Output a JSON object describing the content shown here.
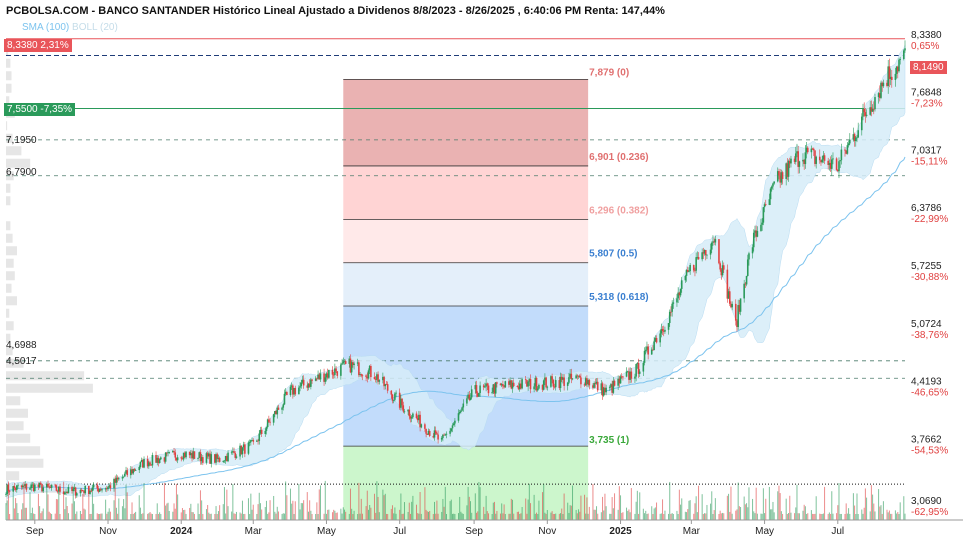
{
  "header": {
    "title": "PCBOLSA.COM - BANCO SANTANDER Histórico Lineal Ajustado a Dividenos 8/8/2023 - 8/26/2025 , 6:40:06 PM Renta: 147,44%",
    "indicator_sma": "SMA (100)",
    "indicator_boll": "BOLL (20)"
  },
  "levels": {
    "top_label": "8,3380",
    "top_change": "2,31%",
    "low_label": "7,5500",
    "low_change": "-7,35%",
    "l1": "7,1950",
    "l2": "6,7900",
    "l3": "4,6988",
    "l4": "4,5017",
    "last_price": "8,1490"
  },
  "colors": {
    "candle_up": "#2a9a5a",
    "candle_down": "#e04040",
    "sma": "#7cc3ee",
    "boll_fill": "#d6ecf8",
    "fib_red_dark": "#eab2b2",
    "fib_red_mid": "#ffd4d4",
    "fib_red_light": "#ffe9e9",
    "fib_blue_light": "#e4effa",
    "fib_blue": "#c2dcfb",
    "fib_green": "#ccf6cc"
  },
  "chart_data": {
    "type": "candlestick",
    "x_range": [
      "2023-08-08",
      "2025-08-26"
    ],
    "y_range": [
      2.9,
      8.55
    ],
    "y_ticks": [
      {
        "price": "8,3380",
        "pct": "0,65%"
      },
      {
        "price": "7,6848",
        "pct": "-7,23%"
      },
      {
        "price": "7,0317",
        "pct": "-15,11%"
      },
      {
        "price": "6,3786",
        "pct": "-22,99%"
      },
      {
        "price": "5,7255",
        "pct": "-30,88%"
      },
      {
        "price": "5,0724",
        "pct": "-38,76%"
      },
      {
        "price": "4,4193",
        "pct": "-46,65%"
      },
      {
        "price": "3,7662",
        "pct": "-54,53%"
      },
      {
        "price": "3,0690",
        "pct": "-62,95%"
      }
    ],
    "x_ticks": [
      {
        "label": "Sep",
        "bold": false
      },
      {
        "label": "Nov",
        "bold": false
      },
      {
        "label": "2024",
        "bold": true
      },
      {
        "label": "Mar",
        "bold": false
      },
      {
        "label": "May",
        "bold": false
      },
      {
        "label": "Jul",
        "bold": false
      },
      {
        "label": "Sep",
        "bold": false
      },
      {
        "label": "Nov",
        "bold": false
      },
      {
        "label": "2025",
        "bold": true
      },
      {
        "label": "Mar",
        "bold": false
      },
      {
        "label": "May",
        "bold": false
      },
      {
        "label": "Jul",
        "bold": false
      }
    ],
    "x_tick_dates": [
      "2023-09-01",
      "2023-11-01",
      "2024-01-01",
      "2024-03-01",
      "2024-05-01",
      "2024-07-01",
      "2024-09-01",
      "2024-11-01",
      "2025-01-01",
      "2025-03-01",
      "2025-05-01",
      "2025-07-01"
    ],
    "horizontal_levels": [
      8.338,
      8.149,
      7.55,
      7.195,
      6.79,
      4.6988,
      4.5017,
      3.305
    ],
    "fibonacci": {
      "start_date": "2024-05-15",
      "end_date": "2024-12-05",
      "levels": [
        {
          "label": "7,879 (0)",
          "value": 7.879
        },
        {
          "label": "6,901 (0.236)",
          "value": 6.901
        },
        {
          "label": "6,296 (0.382)",
          "value": 6.296
        },
        {
          "label": "5,807 (0.5)",
          "value": 5.807
        },
        {
          "label": "5,318 (0.618)",
          "value": 5.318
        },
        {
          "label": "3,735 (1)",
          "value": 3.735
        }
      ]
    },
    "close_anchors": [
      [
        "2023-08-08",
        3.25
      ],
      [
        "2023-09-01",
        3.28
      ],
      [
        "2023-10-01",
        3.22
      ],
      [
        "2023-11-01",
        3.27
      ],
      [
        "2023-12-01",
        3.55
      ],
      [
        "2024-01-01",
        3.65
      ],
      [
        "2024-02-01",
        3.58
      ],
      [
        "2024-03-01",
        3.75
      ],
      [
        "2024-04-01",
        4.35
      ],
      [
        "2024-05-01",
        4.55
      ],
      [
        "2024-05-20",
        4.65
      ],
      [
        "2024-06-10",
        4.55
      ],
      [
        "2024-07-01",
        4.22
      ],
      [
        "2024-08-05",
        3.78
      ],
      [
        "2024-09-01",
        4.35
      ],
      [
        "2024-10-01",
        4.42
      ],
      [
        "2024-11-01",
        4.45
      ],
      [
        "2024-12-01",
        4.5
      ],
      [
        "2024-12-20",
        4.35
      ],
      [
        "2025-01-15",
        4.6
      ],
      [
        "2025-02-10",
        5.2
      ],
      [
        "2025-03-01",
        5.75
      ],
      [
        "2025-03-20",
        6.1
      ],
      [
        "2025-04-07",
        5.1
      ],
      [
        "2025-04-20",
        6.0
      ],
      [
        "2025-05-10",
        6.7
      ],
      [
        "2025-06-01",
        7.05
      ],
      [
        "2025-07-01",
        6.9
      ],
      [
        "2025-07-20",
        7.4
      ],
      [
        "2025-08-10",
        7.9
      ],
      [
        "2025-08-26",
        8.149
      ]
    ]
  }
}
